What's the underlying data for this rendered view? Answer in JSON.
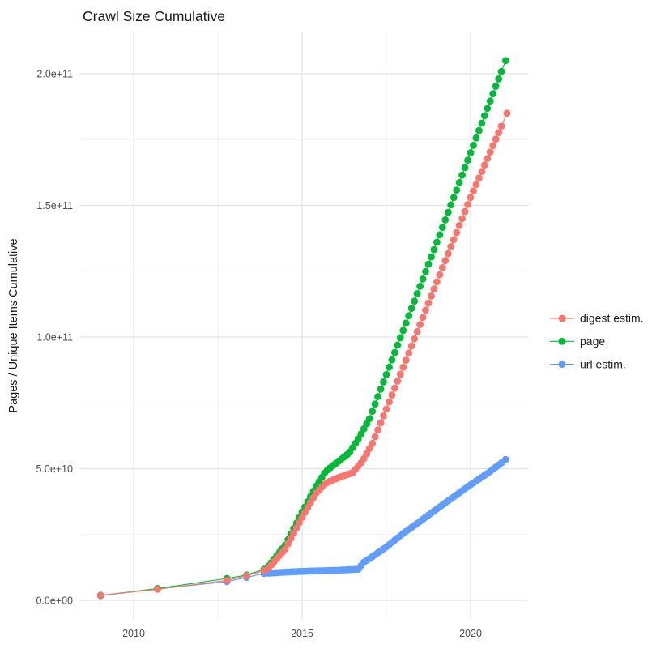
{
  "title": "Crawl Size Cumulative",
  "legend": {
    "items": [
      {
        "label": "digest estim.",
        "color": "#F8766D",
        "series": "digest"
      },
      {
        "label": "page",
        "color": "#00BA38",
        "series": "page"
      },
      {
        "label": "url estim.",
        "color": "#619CFF",
        "series": "url"
      }
    ]
  },
  "colors": {
    "digest": "#F8766D",
    "page": "#00BA38",
    "url": "#619CFF",
    "grid_major": "#e3e3e3",
    "grid_minor": "#efefef",
    "tick_text": "#4d4d4d",
    "title_text": "#1a1a1a",
    "background": "#ffffff"
  },
  "chart_data": {
    "type": "line",
    "title": "Crawl Size Cumulative",
    "xlabel": "",
    "ylabel": "Pages / Unique Items Cumulative",
    "unit": "pages, value stored in billions (1e9)",
    "grid": "on",
    "legend_position": "right-center",
    "xlim": [
      2008.4,
      2021.7
    ],
    "ylim_billion": [
      -7.4,
      215.7
    ],
    "x_ticks": {
      "values": [
        2010,
        2015,
        2020
      ],
      "labels": [
        "2010",
        "2015",
        "2020"
      ]
    },
    "x_minor_ticks": [
      2012.5,
      2017.5
    ],
    "y_ticks": {
      "values_billion": [
        0,
        50,
        100,
        150,
        200
      ],
      "labels": [
        "0.0e+00",
        "5.0e+10",
        "1.0e+11",
        "1.5e+11",
        "2.0e+11"
      ]
    },
    "y_minor_ticks_billion": [
      25,
      75,
      125,
      175
    ],
    "series": [
      {
        "name": "url estim.",
        "id": "url",
        "color": "#619CFF",
        "draw_order": 1,
        "points": [
          [
            2009.02,
            1.75
          ],
          [
            2010.71,
            4.35
          ],
          [
            2012.77,
            7.1
          ],
          [
            2013.35,
            8.7
          ],
          [
            2013.87,
            10.2
          ],
          [
            2014.0,
            10.3
          ],
          [
            2014.083,
            10.37
          ],
          [
            2014.167,
            10.43
          ],
          [
            2014.25,
            10.5
          ],
          [
            2014.333,
            10.57
          ],
          [
            2014.417,
            10.63
          ],
          [
            2014.5,
            10.7
          ],
          [
            2014.583,
            10.75
          ],
          [
            2014.667,
            10.8
          ],
          [
            2014.75,
            10.85
          ],
          [
            2014.833,
            10.9
          ],
          [
            2014.917,
            10.95
          ],
          [
            2015.0,
            11.0
          ],
          [
            2015.083,
            11.03
          ],
          [
            2015.167,
            11.07
          ],
          [
            2015.25,
            11.1
          ],
          [
            2015.333,
            11.13
          ],
          [
            2015.417,
            11.17
          ],
          [
            2015.5,
            11.2
          ],
          [
            2015.583,
            11.23
          ],
          [
            2015.667,
            11.27
          ],
          [
            2015.75,
            11.3
          ],
          [
            2015.833,
            11.33
          ],
          [
            2015.917,
            11.37
          ],
          [
            2016.0,
            11.4
          ],
          [
            2016.083,
            11.45
          ],
          [
            2016.167,
            11.5
          ],
          [
            2016.25,
            11.55
          ],
          [
            2016.333,
            11.6
          ],
          [
            2016.417,
            11.65
          ],
          [
            2016.5,
            11.7
          ],
          [
            2016.583,
            11.75
          ],
          [
            2016.667,
            11.8
          ],
          [
            2016.75,
            13.2
          ],
          [
            2016.833,
            14.5
          ],
          [
            2016.917,
            15.15
          ],
          [
            2017.0,
            15.8
          ],
          [
            2017.083,
            16.55
          ],
          [
            2017.167,
            17.3
          ],
          [
            2017.25,
            18.05
          ],
          [
            2017.333,
            18.8
          ],
          [
            2017.417,
            19.55
          ],
          [
            2017.5,
            20.3
          ],
          [
            2017.583,
            21.15
          ],
          [
            2017.667,
            22.0
          ],
          [
            2017.75,
            22.85
          ],
          [
            2017.833,
            23.7
          ],
          [
            2017.917,
            24.55
          ],
          [
            2018.0,
            25.4
          ],
          [
            2018.083,
            26.17
          ],
          [
            2018.167,
            26.93
          ],
          [
            2018.25,
            27.7
          ],
          [
            2018.333,
            28.47
          ],
          [
            2018.417,
            29.23
          ],
          [
            2018.5,
            30.0
          ],
          [
            2018.583,
            30.78
          ],
          [
            2018.667,
            31.57
          ],
          [
            2018.75,
            32.35
          ],
          [
            2018.833,
            33.13
          ],
          [
            2018.917,
            33.92
          ],
          [
            2019.0,
            34.7
          ],
          [
            2019.083,
            35.47
          ],
          [
            2019.167,
            36.23
          ],
          [
            2019.25,
            37.0
          ],
          [
            2019.333,
            37.77
          ],
          [
            2019.417,
            38.53
          ],
          [
            2019.5,
            39.3
          ],
          [
            2019.583,
            40.07
          ],
          [
            2019.667,
            40.83
          ],
          [
            2019.75,
            41.6
          ],
          [
            2019.833,
            42.37
          ],
          [
            2019.917,
            43.13
          ],
          [
            2020.0,
            43.9
          ],
          [
            2020.083,
            44.62
          ],
          [
            2020.167,
            45.33
          ],
          [
            2020.25,
            46.05
          ],
          [
            2020.333,
            46.77
          ],
          [
            2020.417,
            47.48
          ],
          [
            2020.5,
            48.2
          ],
          [
            2020.583,
            49.0
          ],
          [
            2020.667,
            49.8
          ],
          [
            2020.75,
            50.6
          ],
          [
            2020.833,
            51.4
          ],
          [
            2020.917,
            52.2
          ],
          [
            2021.04,
            53.5
          ]
        ]
      },
      {
        "name": "page",
        "id": "page",
        "color": "#00BA38",
        "draw_order": 2,
        "points": [
          [
            2009.02,
            1.85
          ],
          [
            2010.71,
            4.5
          ],
          [
            2012.77,
            8.3
          ],
          [
            2013.35,
            9.6
          ],
          [
            2013.87,
            11.8
          ],
          [
            2014.0,
            13.0
          ],
          [
            2014.083,
            14.33
          ],
          [
            2014.167,
            15.67
          ],
          [
            2014.25,
            17.0
          ],
          [
            2014.333,
            18.33
          ],
          [
            2014.417,
            19.67
          ],
          [
            2014.5,
            21.0
          ],
          [
            2014.583,
            23.08
          ],
          [
            2014.667,
            25.17
          ],
          [
            2014.75,
            27.25
          ],
          [
            2014.833,
            29.33
          ],
          [
            2014.917,
            31.42
          ],
          [
            2015.0,
            33.5
          ],
          [
            2015.083,
            35.48
          ],
          [
            2015.167,
            37.46
          ],
          [
            2015.25,
            39.44
          ],
          [
            2015.333,
            41.42
          ],
          [
            2015.417,
            43.33
          ],
          [
            2015.5,
            45.0
          ],
          [
            2015.583,
            46.67
          ],
          [
            2015.667,
            48.33
          ],
          [
            2015.75,
            49.5
          ],
          [
            2015.833,
            50.33
          ],
          [
            2015.917,
            51.17
          ],
          [
            2016.0,
            52.0
          ],
          [
            2016.083,
            52.83
          ],
          [
            2016.167,
            53.67
          ],
          [
            2016.25,
            54.5
          ],
          [
            2016.333,
            55.33
          ],
          [
            2016.417,
            56.33
          ],
          [
            2016.5,
            58.0
          ],
          [
            2016.583,
            59.67
          ],
          [
            2016.667,
            61.33
          ],
          [
            2016.75,
            63.17
          ],
          [
            2016.833,
            65.11
          ],
          [
            2016.917,
            67.06
          ],
          [
            2017.0,
            69.0
          ],
          [
            2017.083,
            71.79
          ],
          [
            2017.167,
            74.58
          ],
          [
            2017.25,
            77.38
          ],
          [
            2017.333,
            80.17
          ],
          [
            2017.417,
            82.96
          ],
          [
            2017.5,
            85.75
          ],
          [
            2017.583,
            88.54
          ],
          [
            2017.667,
            91.33
          ],
          [
            2017.75,
            94.13
          ],
          [
            2017.833,
            96.92
          ],
          [
            2017.917,
            99.71
          ],
          [
            2018.0,
            102.5
          ],
          [
            2018.083,
            105.29
          ],
          [
            2018.167,
            108.08
          ],
          [
            2018.25,
            110.88
          ],
          [
            2018.333,
            113.67
          ],
          [
            2018.417,
            116.46
          ],
          [
            2018.5,
            119.25
          ],
          [
            2018.583,
            122.04
          ],
          [
            2018.667,
            124.83
          ],
          [
            2018.75,
            127.63
          ],
          [
            2018.833,
            130.42
          ],
          [
            2018.917,
            133.21
          ],
          [
            2019.0,
            136.0
          ],
          [
            2019.083,
            138.83
          ],
          [
            2019.167,
            141.67
          ],
          [
            2019.25,
            144.5
          ],
          [
            2019.333,
            147.33
          ],
          [
            2019.417,
            150.17
          ],
          [
            2019.5,
            153.0
          ],
          [
            2019.583,
            155.83
          ],
          [
            2019.667,
            158.67
          ],
          [
            2019.75,
            161.5
          ],
          [
            2019.833,
            164.33
          ],
          [
            2019.917,
            167.17
          ],
          [
            2020.0,
            170.0
          ],
          [
            2020.083,
            172.8
          ],
          [
            2020.167,
            175.61
          ],
          [
            2020.25,
            178.41
          ],
          [
            2020.333,
            181.22
          ],
          [
            2020.417,
            184.02
          ],
          [
            2020.5,
            186.83
          ],
          [
            2020.583,
            189.63
          ],
          [
            2020.667,
            192.43
          ],
          [
            2020.75,
            195.24
          ],
          [
            2020.833,
            198.04
          ],
          [
            2020.917,
            200.85
          ],
          [
            2021.04,
            205.0
          ]
        ]
      },
      {
        "name": "digest estim.",
        "id": "digest",
        "color": "#F8766D",
        "draw_order": 3,
        "points": [
          [
            2009.02,
            1.95
          ],
          [
            2010.71,
            4.2
          ],
          [
            2012.77,
            7.6
          ],
          [
            2013.35,
            9.3
          ],
          [
            2013.87,
            11.3
          ],
          [
            2014.0,
            12.2
          ],
          [
            2014.083,
            13.42
          ],
          [
            2014.167,
            14.63
          ],
          [
            2014.25,
            15.85
          ],
          [
            2014.333,
            17.07
          ],
          [
            2014.417,
            18.28
          ],
          [
            2014.5,
            19.5
          ],
          [
            2014.583,
            21.5
          ],
          [
            2014.667,
            23.5
          ],
          [
            2014.75,
            25.5
          ],
          [
            2014.833,
            27.5
          ],
          [
            2014.917,
            29.5
          ],
          [
            2015.0,
            31.5
          ],
          [
            2015.083,
            33.38
          ],
          [
            2015.167,
            35.25
          ],
          [
            2015.25,
            37.13
          ],
          [
            2015.333,
            39.0
          ],
          [
            2015.417,
            40.72
          ],
          [
            2015.5,
            41.83
          ],
          [
            2015.583,
            42.94
          ],
          [
            2015.667,
            44.06
          ],
          [
            2015.75,
            44.78
          ],
          [
            2015.833,
            45.23
          ],
          [
            2015.917,
            45.69
          ],
          [
            2016.0,
            46.15
          ],
          [
            2016.083,
            46.61
          ],
          [
            2016.167,
            47.0
          ],
          [
            2016.25,
            47.38
          ],
          [
            2016.333,
            47.75
          ],
          [
            2016.417,
            48.13
          ],
          [
            2016.5,
            48.5
          ],
          [
            2016.583,
            49.75
          ],
          [
            2016.667,
            51.0
          ],
          [
            2016.75,
            52.25
          ],
          [
            2016.833,
            53.78
          ],
          [
            2016.917,
            55.72
          ],
          [
            2017.0,
            57.67
          ],
          [
            2017.083,
            59.61
          ],
          [
            2017.167,
            62.11
          ],
          [
            2017.25,
            64.75
          ],
          [
            2017.333,
            67.39
          ],
          [
            2017.417,
            70.03
          ],
          [
            2017.5,
            72.67
          ],
          [
            2017.583,
            75.31
          ],
          [
            2017.667,
            77.94
          ],
          [
            2017.75,
            80.58
          ],
          [
            2017.833,
            83.22
          ],
          [
            2017.917,
            85.86
          ],
          [
            2018.0,
            88.5
          ],
          [
            2018.083,
            91.21
          ],
          [
            2018.167,
            93.92
          ],
          [
            2018.25,
            96.63
          ],
          [
            2018.333,
            99.33
          ],
          [
            2018.417,
            102.04
          ],
          [
            2018.5,
            104.75
          ],
          [
            2018.583,
            107.46
          ],
          [
            2018.667,
            110.17
          ],
          [
            2018.75,
            112.88
          ],
          [
            2018.833,
            115.58
          ],
          [
            2018.917,
            118.29
          ],
          [
            2019.0,
            121.0
          ],
          [
            2019.083,
            123.67
          ],
          [
            2019.167,
            126.33
          ],
          [
            2019.25,
            129.0
          ],
          [
            2019.333,
            131.67
          ],
          [
            2019.417,
            134.33
          ],
          [
            2019.5,
            137.0
          ],
          [
            2019.583,
            139.67
          ],
          [
            2019.667,
            142.33
          ],
          [
            2019.75,
            145.0
          ],
          [
            2019.833,
            147.67
          ],
          [
            2019.917,
            150.33
          ],
          [
            2020.0,
            153.0
          ],
          [
            2020.083,
            155.47
          ],
          [
            2020.167,
            157.93
          ],
          [
            2020.25,
            160.4
          ],
          [
            2020.333,
            162.87
          ],
          [
            2020.417,
            165.33
          ],
          [
            2020.5,
            167.8
          ],
          [
            2020.583,
            170.27
          ],
          [
            2020.667,
            172.73
          ],
          [
            2020.75,
            175.2
          ],
          [
            2020.833,
            177.67
          ],
          [
            2020.917,
            180.13
          ],
          [
            2021.08,
            185.0
          ]
        ]
      }
    ]
  }
}
